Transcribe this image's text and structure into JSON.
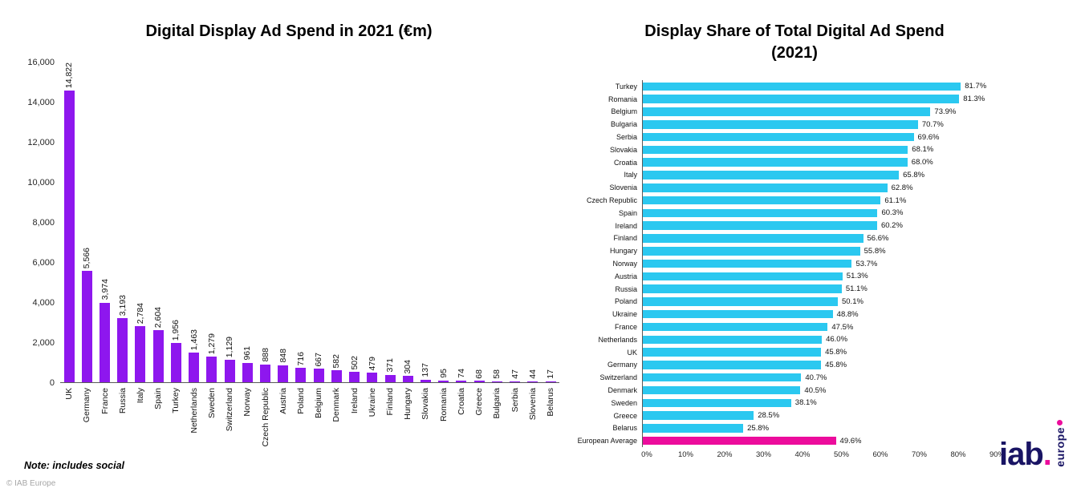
{
  "page": {
    "note": "Note: includes social",
    "copyright": "© IAB Europe"
  },
  "logo": {
    "text": "iab",
    "dot": ".",
    "vertical_text": "europe",
    "navy": "#191464",
    "magenta": "#ec0c9c"
  },
  "chart_data": [
    {
      "type": "bar",
      "title": "Digital Display Ad Spend in 2021 (€m)",
      "xlabel": "",
      "ylabel": "",
      "ylim": [
        0,
        16000
      ],
      "ytick_step": 2000,
      "ytick_labels": [
        "0",
        "2,000",
        "4,000",
        "6,000",
        "8,000",
        "10,000",
        "12,000",
        "14,000",
        "16,000"
      ],
      "grid": false,
      "bar_color": "#8e17ee",
      "note": "Note: includes social",
      "categories": [
        "UK",
        "Germany",
        "France",
        "Russia",
        "Italy",
        "Spain",
        "Turkey",
        "Netherlands",
        "Sweden",
        "Switzerland",
        "Norway",
        "Czech Republic",
        "Austria",
        "Poland",
        "Belgium",
        "Denmark",
        "Ireland",
        "Ukraine",
        "Finland",
        "Hungary",
        "Slovakia",
        "Romania",
        "Croatia",
        "Greece",
        "Bulgaria",
        "Serbia",
        "Slovenia",
        "Belarus"
      ],
      "values": [
        14822,
        5566,
        3974,
        3193,
        2784,
        2604,
        1956,
        1463,
        1279,
        1129,
        961,
        888,
        848,
        716,
        667,
        582,
        502,
        479,
        371,
        304,
        137,
        95,
        74,
        68,
        58,
        47,
        44,
        17
      ],
      "value_labels": [
        "14,822",
        "5,566",
        "3,974",
        "3,193",
        "2,784",
        "2,604",
        "1,956",
        "1,463",
        "1,279",
        "1,129",
        "961",
        "888",
        "848",
        "716",
        "667",
        "582",
        "502",
        "479",
        "371",
        "304",
        "137",
        "95",
        "74",
        "68",
        "58",
        "47",
        "44",
        "17"
      ]
    },
    {
      "type": "bar-horizontal",
      "title": "Display Share of Total Digital Ad Spend",
      "subtitle": "(2021)",
      "xlabel": "",
      "ylabel": "",
      "xlim": [
        0,
        90
      ],
      "xtick_labels": [
        "0%",
        "10%",
        "20%",
        "30%",
        "40%",
        "50%",
        "60%",
        "70%",
        "80%",
        "90%"
      ],
      "grid": false,
      "bar_color": "#2bc8f0",
      "highlight_category": "European Average",
      "highlight_color": "#ec0c9c",
      "categories": [
        "Turkey",
        "Romania",
        "Belgium",
        "Bulgaria",
        "Serbia",
        "Slovakia",
        "Croatia",
        "Italy",
        "Slovenia",
        "Czech Republic",
        "Spain",
        "Ireland",
        "Finland",
        "Hungary",
        "Norway",
        "Austria",
        "Russia",
        "Poland",
        "Ukraine",
        "France",
        "Netherlands",
        "UK",
        "Germany",
        "Switzerland",
        "Denmark",
        "Sweden",
        "Greece",
        "Belarus",
        "European Average"
      ],
      "values": [
        81.7,
        81.3,
        73.9,
        70.7,
        69.6,
        68.1,
        68.0,
        65.8,
        62.8,
        61.1,
        60.3,
        60.2,
        56.6,
        55.8,
        53.7,
        51.3,
        51.1,
        50.1,
        48.8,
        47.5,
        46.0,
        45.8,
        45.8,
        40.7,
        40.5,
        38.1,
        28.5,
        25.8,
        49.6
      ],
      "value_labels": [
        "81.7%",
        "81.3%",
        "73.9%",
        "70.7%",
        "69.6%",
        "68.1%",
        "68.0%",
        "65.8%",
        "62.8%",
        "61.1%",
        "60.3%",
        "60.2%",
        "56.6%",
        "55.8%",
        "53.7%",
        "51.3%",
        "51.1%",
        "50.1%",
        "48.8%",
        "47.5%",
        "46.0%",
        "45.8%",
        "45.8%",
        "40.7%",
        "40.5%",
        "38.1%",
        "28.5%",
        "25.8%",
        "49.6%"
      ]
    }
  ]
}
